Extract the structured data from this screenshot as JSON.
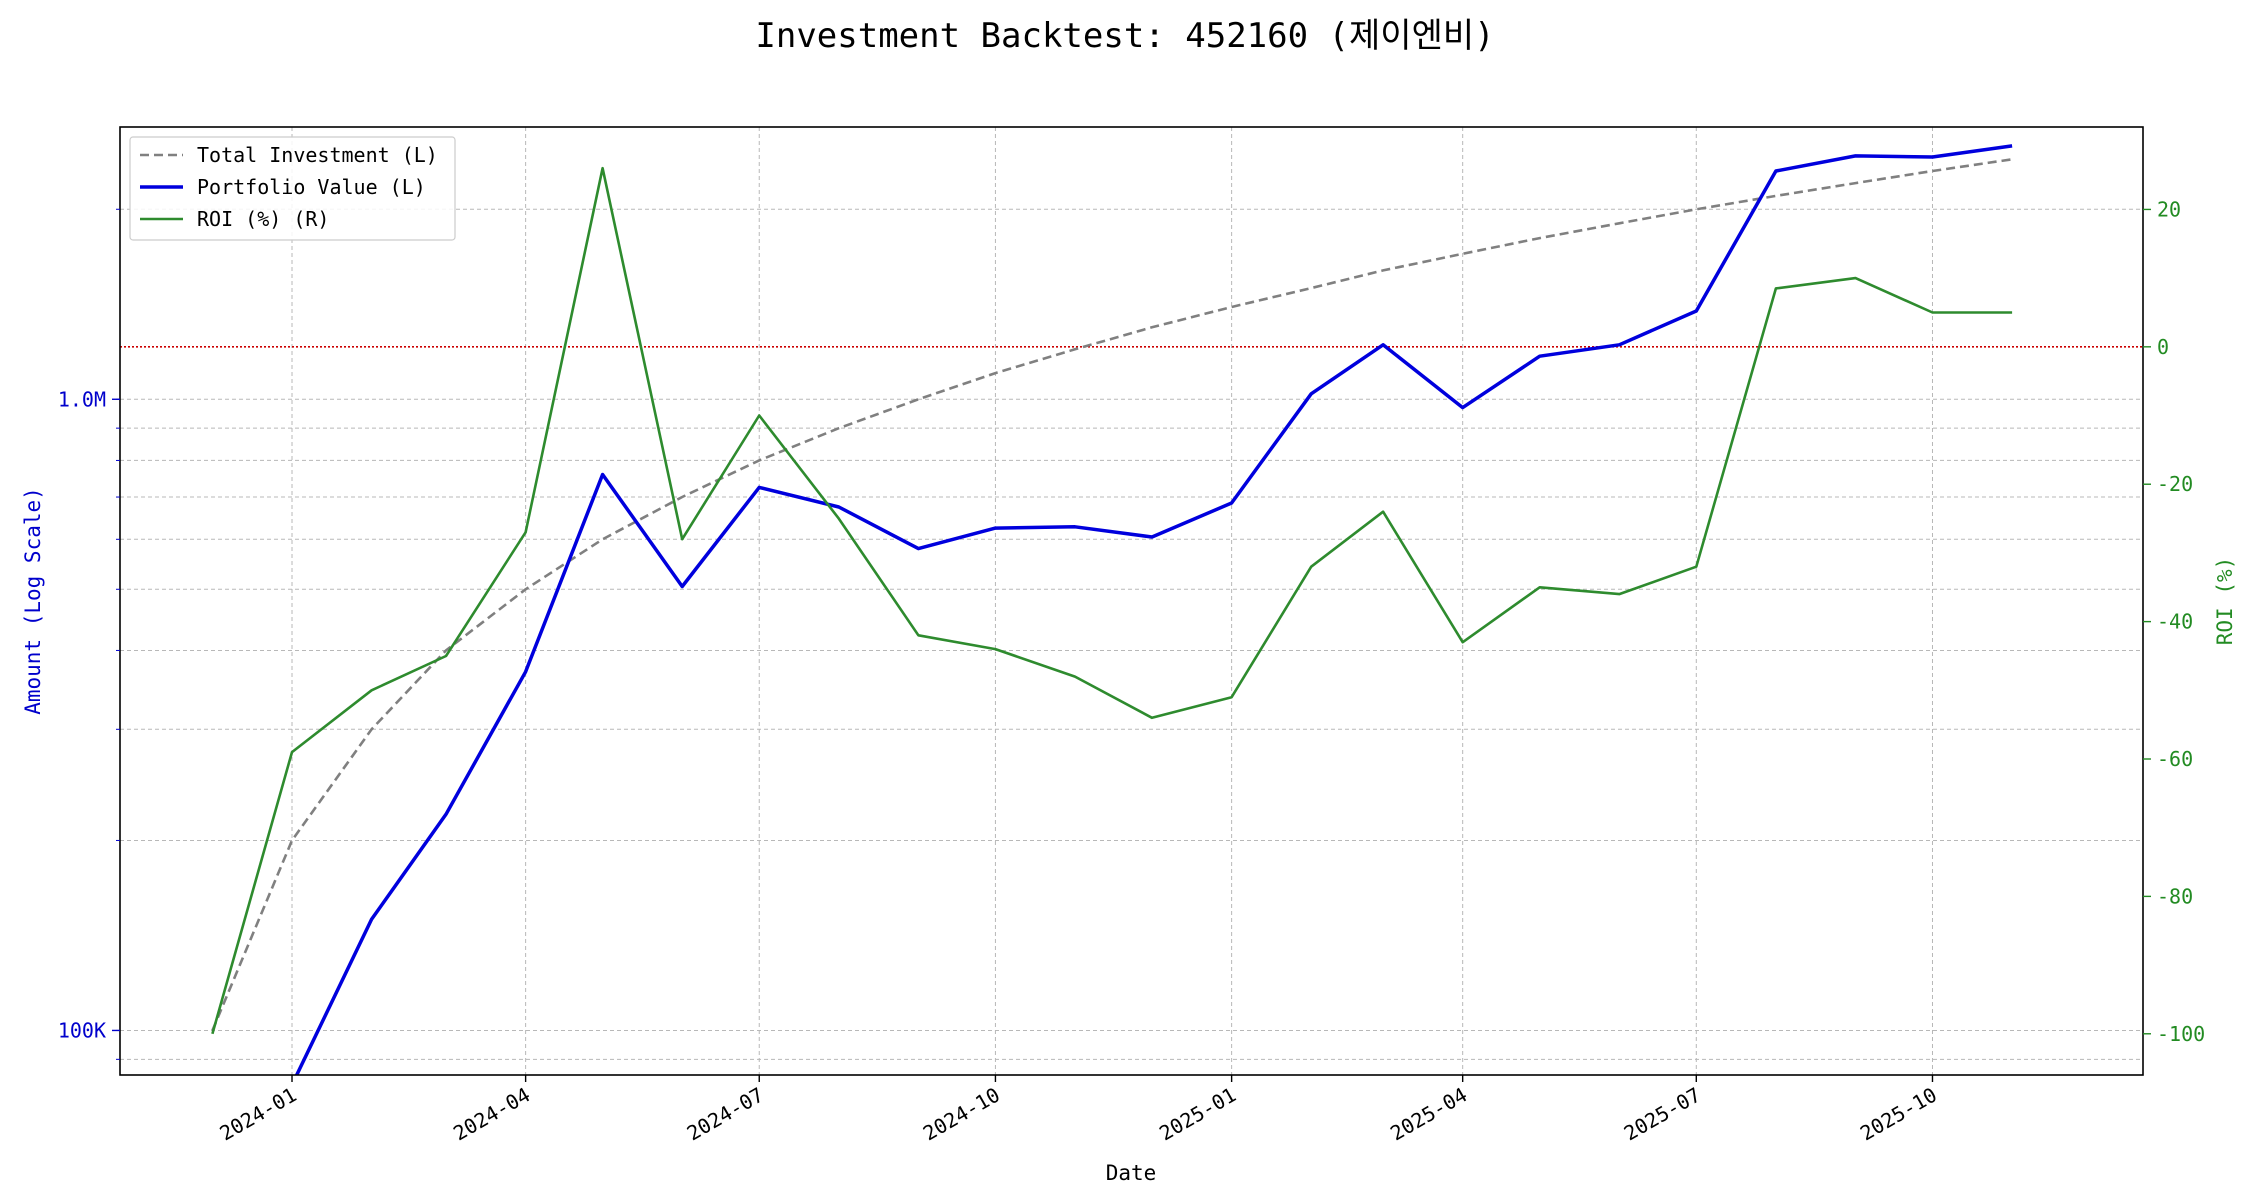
{
  "chart_data": {
    "type": "line",
    "title": "Investment Backtest: 452160 (제이엔비)",
    "xlabel": "Date",
    "ylabel_left": "Amount (Log Scale)",
    "ylabel_right": "ROI (%)",
    "left_axis_scale": "log",
    "ylim_left": [
      85000,
      2700000
    ],
    "ylim_right": [
      -106,
      32
    ],
    "xlim": [
      "2023-10-26",
      "2025-12-22"
    ],
    "x_ticks": [
      "2024-01",
      "2024-04",
      "2024-07",
      "2024-10",
      "2025-01",
      "2025-04",
      "2025-07",
      "2025-10"
    ],
    "y_ticks_left": [
      {
        "value": 100000,
        "label": "100K"
      },
      {
        "value": 1000000,
        "label": "1.0M"
      }
    ],
    "y_ticks_right": [
      20,
      0,
      -20,
      -40,
      -60,
      -80,
      -100
    ],
    "reference_line": {
      "axis": "right",
      "value": 0,
      "color": "#cc0000",
      "style": "dotted"
    },
    "grid": true,
    "legend_position": "top-left",
    "colors": {
      "investment": "#808080",
      "portfolio": "#0000dd",
      "roi": "#2e8b2e",
      "left_axis": "#0000cc",
      "right_axis": "#228b22"
    },
    "series": [
      {
        "name": "Total Investment (L)",
        "axis": "left",
        "style": "dashed",
        "points": [
          [
            "2023-12-01",
            100000
          ],
          [
            "2024-01-01",
            200000
          ],
          [
            "2024-02-01",
            300000
          ],
          [
            "2024-03-01",
            400000
          ],
          [
            "2024-04-01",
            500000
          ],
          [
            "2024-05-01",
            600000
          ],
          [
            "2024-06-01",
            700000
          ],
          [
            "2024-07-01",
            800000
          ],
          [
            "2024-08-01",
            900000
          ],
          [
            "2024-09-01",
            1000000
          ],
          [
            "2024-10-01",
            1100000
          ],
          [
            "2024-11-01",
            1200000
          ],
          [
            "2024-12-01",
            1300000
          ],
          [
            "2025-01-01",
            1400000
          ],
          [
            "2025-02-01",
            1500000
          ],
          [
            "2025-03-01",
            1600000
          ],
          [
            "2025-04-01",
            1700000
          ],
          [
            "2025-05-01",
            1800000
          ],
          [
            "2025-06-01",
            1900000
          ],
          [
            "2025-07-01",
            2000000
          ],
          [
            "2025-08-01",
            2100000
          ],
          [
            "2025-09-01",
            2200000
          ],
          [
            "2025-10-01",
            2300000
          ],
          [
            "2025-11-01",
            2400000
          ]
        ]
      },
      {
        "name": "Portfolio Value (L)",
        "axis": "left",
        "style": "solid",
        "points": [
          [
            "2024-01-01",
            50000
          ],
          [
            "2024-01-01",
            82000
          ],
          [
            "2024-02-01",
            150000
          ],
          [
            "2024-03-01",
            220000
          ],
          [
            "2024-04-01",
            370000
          ],
          [
            "2024-05-01",
            760000
          ],
          [
            "2024-06-01",
            505000
          ],
          [
            "2024-07-01",
            725000
          ],
          [
            "2024-08-01",
            675000
          ],
          [
            "2024-09-01",
            580000
          ],
          [
            "2024-10-01",
            625000
          ],
          [
            "2024-11-01",
            628000
          ],
          [
            "2024-12-01",
            605000
          ],
          [
            "2025-01-01",
            685000
          ],
          [
            "2025-02-01",
            1020000
          ],
          [
            "2025-03-01",
            1220000
          ],
          [
            "2025-04-01",
            970000
          ],
          [
            "2025-05-01",
            1170000
          ],
          [
            "2025-06-01",
            1220000
          ],
          [
            "2025-07-01",
            1380000
          ],
          [
            "2025-08-01",
            2300000
          ],
          [
            "2025-09-01",
            2430000
          ],
          [
            "2025-10-01",
            2420000
          ],
          [
            "2025-11-01",
            2520000
          ]
        ]
      },
      {
        "name": "ROI (%) (R)",
        "axis": "right",
        "style": "solid",
        "points": [
          [
            "2023-12-01",
            -100
          ],
          [
            "2024-01-01",
            -59
          ],
          [
            "2024-02-01",
            -50
          ],
          [
            "2024-03-01",
            -45
          ],
          [
            "2024-04-01",
            -27
          ],
          [
            "2024-05-01",
            26
          ],
          [
            "2024-06-01",
            -28
          ],
          [
            "2024-07-01",
            -10
          ],
          [
            "2024-08-01",
            -25
          ],
          [
            "2024-09-01",
            -42
          ],
          [
            "2024-10-01",
            -44
          ],
          [
            "2024-11-01",
            -48
          ],
          [
            "2024-12-01",
            -54
          ],
          [
            "2025-01-01",
            -51
          ],
          [
            "2025-02-01",
            -32
          ],
          [
            "2025-03-01",
            -24
          ],
          [
            "2025-04-01",
            -43
          ],
          [
            "2025-05-01",
            -35
          ],
          [
            "2025-06-01",
            -36
          ],
          [
            "2025-07-01",
            -32
          ],
          [
            "2025-08-01",
            8.5
          ],
          [
            "2025-09-01",
            10
          ],
          [
            "2025-10-01",
            5
          ],
          [
            "2025-11-01",
            5
          ]
        ]
      }
    ]
  }
}
